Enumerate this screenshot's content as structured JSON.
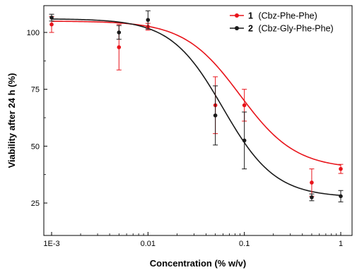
{
  "chart_data": {
    "type": "scatter",
    "xlabel": "Concentration (% w/v)",
    "ylabel": "Viability after 24 h (%)",
    "xscale": "log",
    "xlim": [
      0.001,
      1
    ],
    "ylim": [
      18,
      110
    ],
    "xticks": [
      0.001,
      0.01,
      0.1,
      1
    ],
    "xtick_labels": [
      "1E-3",
      "0.01",
      "0.1",
      "1"
    ],
    "yticks": [
      25,
      50,
      75,
      100
    ],
    "ytick_labels": [
      "25",
      "50",
      "75",
      "100"
    ],
    "grid": false,
    "legend_position": "top-right",
    "series": [
      {
        "name": "(Cbz-Phe-Phe)",
        "legend_number": "1",
        "color": "#e8141b",
        "x": [
          0.001,
          0.005,
          0.01,
          0.05,
          0.1,
          0.5,
          1
        ],
        "y": [
          103.5,
          93.5,
          102.5,
          68,
          68,
          34,
          40
        ],
        "err": [
          3.5,
          10,
          1.5,
          12.5,
          7,
          6,
          2
        ],
        "fit": {
          "top": 105,
          "bottom": 40,
          "ec50": 0.09,
          "hill": 1.5
        }
      },
      {
        "name": "(Cbz-Gly-Phe-Phe)",
        "legend_number": "2",
        "color": "#1a1a1a",
        "x": [
          0.001,
          0.005,
          0.01,
          0.05,
          0.1,
          0.5,
          1
        ],
        "y": [
          106.5,
          100,
          105.5,
          63.5,
          52.5,
          27.5,
          28
        ],
        "err": [
          1.5,
          3,
          4,
          13,
          12.5,
          1.5,
          2.5
        ],
        "fit": {
          "top": 106,
          "bottom": 27.5,
          "ec50": 0.06,
          "hill": 1.6
        }
      }
    ]
  }
}
